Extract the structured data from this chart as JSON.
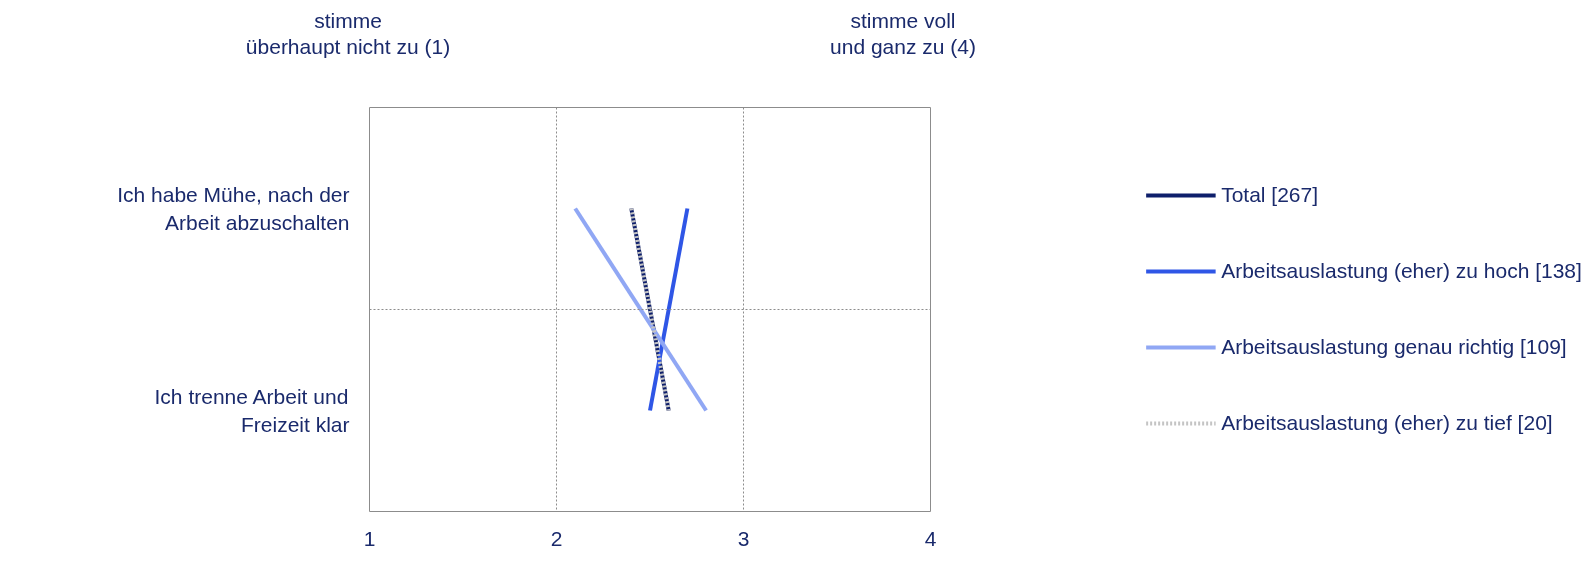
{
  "chart_data": {
    "type": "line",
    "orientation": "horizontal",
    "categories": [
      "Ich habe Mühe, nach der\nArbeit abzuschalten",
      "Ich trenne Arbeit und\nFreizeit klar"
    ],
    "xlim": [
      1,
      4
    ],
    "xticks": [
      1,
      2,
      3,
      4
    ],
    "grid": true,
    "legend": "right",
    "marker": "none",
    "annotations": [
      "stimme\nüberhaupt  nicht zu (1)",
      "stimme voll\nund ganz zu (4)"
    ],
    "series": [
      {
        "name": "Total [267]",
        "color": "#0e1f6b",
        "values": [
          2.4,
          2.6
        ]
      },
      {
        "name": "Arbeitsauslastung (eher) zu hoch [138]",
        "color": "#2f56e6",
        "values": [
          2.7,
          2.5
        ]
      },
      {
        "name": "Arbeitsauslastung genau richtig [109]",
        "color": "#90a7f4",
        "values": [
          2.1,
          2.8
        ]
      },
      {
        "name": "Arbeitsauslastung (eher) zu tief [20]",
        "color": "#c4c4c4",
        "values": [
          2.4,
          2.6
        ],
        "line_style": "dotted"
      }
    ]
  }
}
